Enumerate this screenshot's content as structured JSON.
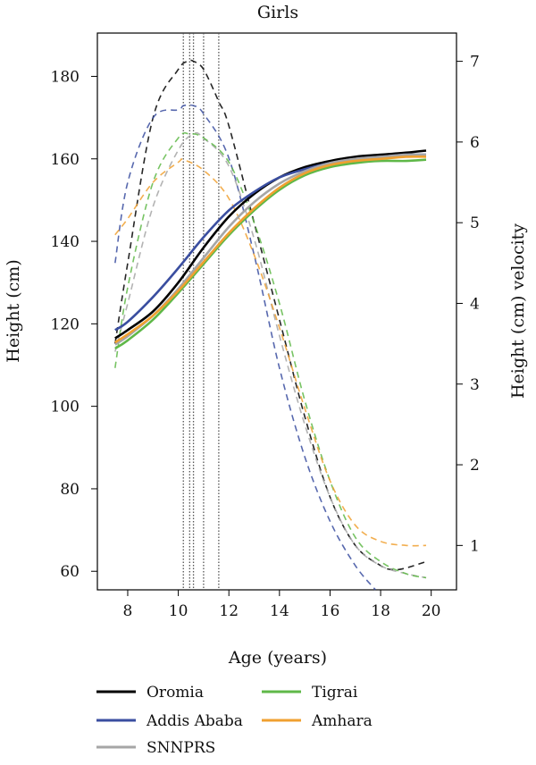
{
  "chart_data": {
    "type": "line",
    "title": "Girls",
    "xlabel": "Age (years)",
    "ylabel": "Height (cm)",
    "y2label": "Height (cm) velocity",
    "xlim": [
      6.8,
      21.0
    ],
    "ylim": [
      55.5,
      72.0,
      190.5
    ],
    "y2lim": [
      0.45,
      7.35
    ],
    "x_ticks": [
      "8",
      "10",
      "12",
      "14",
      "16",
      "18",
      "20"
    ],
    "y_ticks": [
      "60",
      "80",
      "100",
      "120",
      "140",
      "160",
      "180"
    ],
    "y2_ticks": [
      "1",
      "2",
      "3",
      "4",
      "5",
      "6",
      "7"
    ],
    "grid": false,
    "legend_position": "bottom",
    "legend": [
      "Oromia",
      "Addis Ababa",
      "SNNPRS",
      "Tigrai",
      "Amhara"
    ],
    "peak_velocity_ages": [
      10.2,
      10.45,
      10.6,
      11.0,
      11.6
    ],
    "series": [
      {
        "name": "Oromia",
        "color": "#000000",
        "height": {
          "x": [
            7.5,
            8,
            9,
            10,
            11,
            12,
            13,
            14,
            15,
            16,
            17,
            18,
            19,
            19.8
          ],
          "y": [
            116.5,
            118.5,
            123.0,
            130.0,
            138.5,
            146.0,
            151.5,
            155.5,
            158.0,
            159.5,
            160.5,
            161.0,
            161.5,
            162.0
          ]
        },
        "velocity": {
          "x": [
            7.5,
            8,
            9,
            10,
            10.4,
            10.6,
            11,
            11.6,
            12,
            13,
            14,
            15,
            16,
            17,
            18,
            18.5,
            19,
            19.8
          ],
          "y": [
            3.5,
            4.5,
            6.3,
            6.9,
            7.0,
            7.0,
            6.9,
            6.5,
            6.2,
            5.0,
            3.8,
            2.6,
            1.6,
            1.0,
            0.75,
            0.7,
            0.72,
            0.8
          ]
        }
      },
      {
        "name": "Addis Ababa",
        "color": "#3a4ea0",
        "height": {
          "x": [
            7.5,
            8,
            9,
            10,
            11,
            12,
            13,
            14,
            15,
            16,
            17,
            18,
            19,
            19.8
          ],
          "y": [
            118.5,
            120.5,
            126.5,
            133.5,
            141.0,
            147.5,
            152.0,
            155.5,
            157.5,
            159.0,
            160.0,
            160.5,
            161.0,
            161.0
          ]
        },
        "velocity": {
          "x": [
            7.5,
            8,
            9,
            10,
            10.2,
            10.6,
            11,
            12,
            13,
            14,
            15,
            16,
            17,
            17.8
          ],
          "y": [
            4.5,
            5.5,
            6.3,
            6.4,
            6.45,
            6.45,
            6.35,
            5.8,
            4.6,
            3.2,
            2.1,
            1.3,
            0.75,
            0.45
          ]
        }
      },
      {
        "name": "SNNPRS",
        "color": "#a6a6a6",
        "height": {
          "x": [
            7.5,
            8,
            9,
            10,
            11,
            12,
            13,
            14,
            15,
            16,
            17,
            18,
            19,
            19.8
          ],
          "y": [
            115.0,
            117.0,
            122.0,
            128.5,
            136.0,
            143.5,
            149.5,
            154.0,
            157.0,
            159.0,
            160.0,
            160.5,
            161.0,
            161.0
          ]
        },
        "velocity": {
          "x": [
            7.5,
            8,
            9,
            10,
            10.6,
            11,
            12,
            13,
            14,
            15,
            16,
            17,
            18,
            19,
            19.8
          ],
          "y": [
            3.4,
            4.0,
            5.2,
            5.9,
            6.1,
            6.05,
            5.7,
            4.8,
            3.6,
            2.5,
            1.6,
            1.0,
            0.75,
            0.65,
            0.6
          ]
        }
      },
      {
        "name": "Tigrai",
        "color": "#5fb848",
        "height": {
          "x": [
            7.5,
            8,
            9,
            10,
            11,
            12,
            13,
            14,
            15,
            16,
            17,
            18,
            19,
            19.8
          ],
          "y": [
            114.0,
            116.0,
            121.0,
            127.5,
            134.5,
            141.5,
            147.5,
            152.5,
            156.0,
            158.0,
            159.0,
            159.5,
            159.5,
            159.8
          ]
        },
        "velocity": {
          "x": [
            7.5,
            8,
            9,
            10,
            10.45,
            11,
            12,
            13,
            14,
            15,
            16,
            17,
            18,
            19,
            19.8
          ],
          "y": [
            3.2,
            4.2,
            5.5,
            6.05,
            6.1,
            6.05,
            5.75,
            5.0,
            4.0,
            2.8,
            1.8,
            1.1,
            0.8,
            0.65,
            0.6
          ]
        }
      },
      {
        "name": "Amhara",
        "color": "#f0a030",
        "height": {
          "x": [
            7.5,
            8,
            9,
            10,
            11,
            12,
            13,
            14,
            15,
            16,
            17,
            18,
            19,
            19.8
          ],
          "y": [
            115.5,
            117.5,
            122.0,
            128.0,
            135.0,
            142.0,
            148.0,
            153.0,
            156.5,
            158.5,
            159.5,
            160.0,
            160.5,
            160.5
          ]
        },
        "velocity": {
          "x": [
            7.5,
            8,
            9,
            10,
            10.2,
            11,
            12,
            13,
            14,
            15,
            16,
            17,
            18,
            19,
            19.8
          ],
          "y": [
            4.85,
            5.05,
            5.5,
            5.75,
            5.78,
            5.65,
            5.3,
            4.6,
            3.7,
            2.7,
            1.8,
            1.25,
            1.05,
            1.0,
            1.0
          ]
        }
      }
    ]
  }
}
